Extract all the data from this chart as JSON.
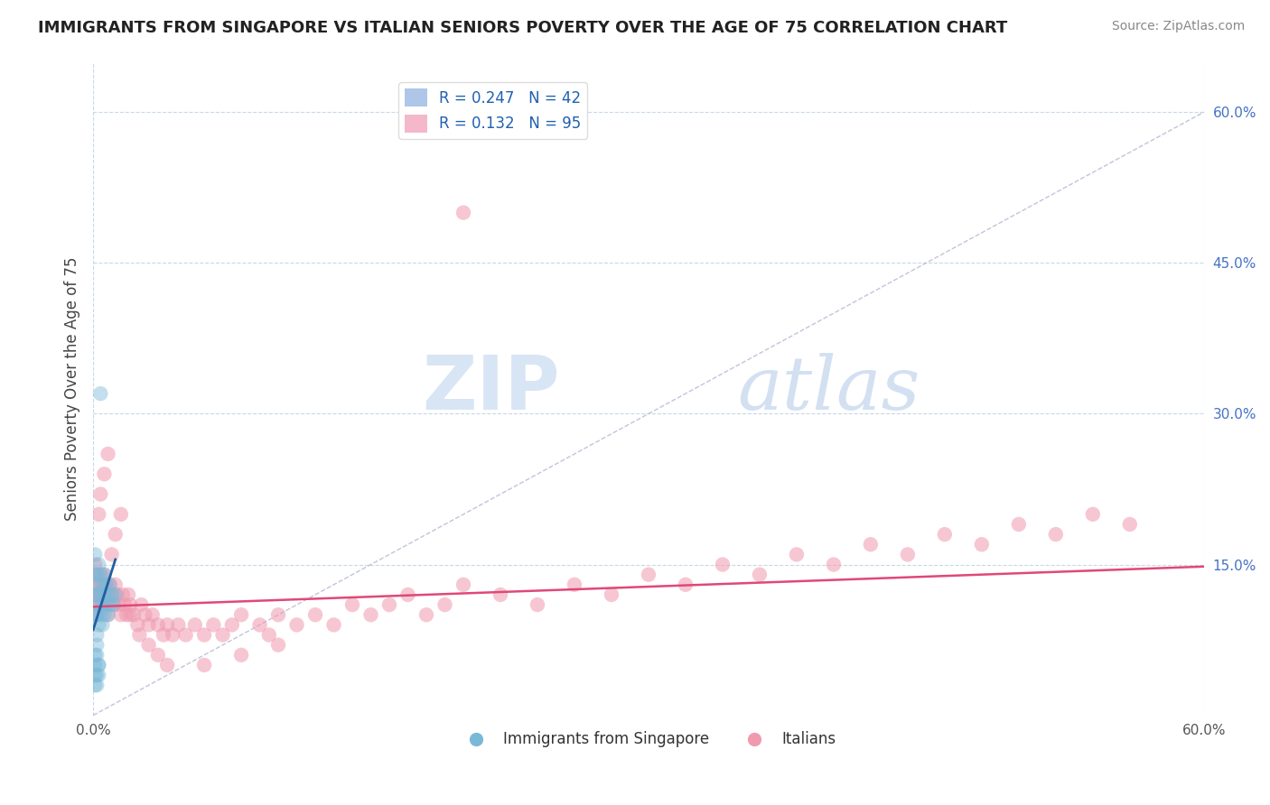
{
  "title": "IMMIGRANTS FROM SINGAPORE VS ITALIAN SENIORS POVERTY OVER THE AGE OF 75 CORRELATION CHART",
  "source": "Source: ZipAtlas.com",
  "ylabel": "Seniors Poverty Over the Age of 75",
  "xlim": [
    0.0,
    0.6
  ],
  "ylim": [
    0.0,
    0.65
  ],
  "xticks": [
    0.0,
    0.1,
    0.2,
    0.3,
    0.4,
    0.5,
    0.6
  ],
  "xticklabels": [
    "0.0%",
    "",
    "",
    "",
    "",
    "",
    "60.0%"
  ],
  "yticks_right": [
    0.15,
    0.3,
    0.45,
    0.6
  ],
  "ytick_right_labels": [
    "15.0%",
    "30.0%",
    "45.0%",
    "60.0%"
  ],
  "legend_entries": [
    {
      "label": "R = 0.247   N = 42",
      "color": "#aec6e8"
    },
    {
      "label": "R = 0.132   N = 95",
      "color": "#f4b8ca"
    }
  ],
  "legend_label1": "Immigrants from Singapore",
  "legend_label2": "Italians",
  "watermark_zip": "ZIP",
  "watermark_atlas": "atlas",
  "background_color": "#ffffff",
  "plot_bg_color": "#ffffff",
  "grid_color": "#c8d8e8",
  "scatter_singapore": {
    "color": "#7ab8d8",
    "alpha": 0.45,
    "size": 140,
    "x": [
      0.001,
      0.001,
      0.001,
      0.001,
      0.002,
      0.002,
      0.002,
      0.002,
      0.003,
      0.003,
      0.003,
      0.003,
      0.004,
      0.004,
      0.004,
      0.005,
      0.005,
      0.005,
      0.006,
      0.006,
      0.006,
      0.007,
      0.007,
      0.008,
      0.008,
      0.009,
      0.009,
      0.01,
      0.011,
      0.012,
      0.004,
      0.003,
      0.002,
      0.001,
      0.001,
      0.002,
      0.003,
      0.003,
      0.002,
      0.001,
      0.001,
      0.002
    ],
    "y": [
      0.1,
      0.12,
      0.14,
      0.16,
      0.08,
      0.1,
      0.12,
      0.14,
      0.09,
      0.11,
      0.13,
      0.15,
      0.1,
      0.12,
      0.14,
      0.09,
      0.11,
      0.13,
      0.1,
      0.12,
      0.14,
      0.11,
      0.13,
      0.1,
      0.12,
      0.11,
      0.13,
      0.12,
      0.11,
      0.12,
      0.32,
      0.05,
      0.04,
      0.03,
      0.05,
      0.06,
      0.04,
      0.05,
      0.03,
      0.04,
      0.06,
      0.07
    ]
  },
  "scatter_italian": {
    "color": "#f09ab0",
    "alpha": 0.55,
    "size": 140,
    "x": [
      0.001,
      0.001,
      0.001,
      0.002,
      0.002,
      0.002,
      0.003,
      0.003,
      0.003,
      0.004,
      0.004,
      0.005,
      0.005,
      0.006,
      0.006,
      0.007,
      0.007,
      0.008,
      0.008,
      0.009,
      0.01,
      0.011,
      0.012,
      0.013,
      0.014,
      0.015,
      0.016,
      0.017,
      0.018,
      0.019,
      0.02,
      0.022,
      0.024,
      0.026,
      0.028,
      0.03,
      0.032,
      0.035,
      0.038,
      0.04,
      0.043,
      0.046,
      0.05,
      0.055,
      0.06,
      0.065,
      0.07,
      0.075,
      0.08,
      0.09,
      0.095,
      0.1,
      0.11,
      0.12,
      0.13,
      0.14,
      0.15,
      0.16,
      0.17,
      0.18,
      0.19,
      0.2,
      0.22,
      0.24,
      0.26,
      0.28,
      0.3,
      0.32,
      0.34,
      0.36,
      0.38,
      0.4,
      0.42,
      0.44,
      0.46,
      0.48,
      0.5,
      0.52,
      0.54,
      0.56,
      0.004,
      0.006,
      0.008,
      0.01,
      0.012,
      0.015,
      0.02,
      0.025,
      0.03,
      0.035,
      0.04,
      0.06,
      0.08,
      0.1,
      0.2
    ],
    "y": [
      0.11,
      0.13,
      0.15,
      0.1,
      0.12,
      0.14,
      0.11,
      0.13,
      0.2,
      0.12,
      0.14,
      0.11,
      0.13,
      0.12,
      0.14,
      0.11,
      0.13,
      0.12,
      0.1,
      0.13,
      0.12,
      0.11,
      0.13,
      0.12,
      0.11,
      0.1,
      0.12,
      0.11,
      0.1,
      0.12,
      0.11,
      0.1,
      0.09,
      0.11,
      0.1,
      0.09,
      0.1,
      0.09,
      0.08,
      0.09,
      0.08,
      0.09,
      0.08,
      0.09,
      0.08,
      0.09,
      0.08,
      0.09,
      0.1,
      0.09,
      0.08,
      0.1,
      0.09,
      0.1,
      0.09,
      0.11,
      0.1,
      0.11,
      0.12,
      0.1,
      0.11,
      0.13,
      0.12,
      0.11,
      0.13,
      0.12,
      0.14,
      0.13,
      0.15,
      0.14,
      0.16,
      0.15,
      0.17,
      0.16,
      0.18,
      0.17,
      0.19,
      0.18,
      0.2,
      0.19,
      0.22,
      0.24,
      0.26,
      0.16,
      0.18,
      0.2,
      0.1,
      0.08,
      0.07,
      0.06,
      0.05,
      0.05,
      0.06,
      0.07,
      0.5
    ]
  },
  "diagonal_line": {
    "color": "#aaaacc",
    "x_start": 0.0,
    "x_end": 0.6,
    "y_start": 0.0,
    "y_end": 0.6,
    "linewidth": 1.0,
    "linestyle": "--"
  },
  "trendline_singapore": {
    "color": "#2060a0",
    "x_start": 0.0,
    "x_end": 0.012,
    "y_start": 0.085,
    "y_end": 0.155,
    "linewidth": 2.0,
    "linestyle": "-"
  },
  "trendline_italian": {
    "color": "#e04878",
    "x_start": 0.0,
    "x_end": 0.6,
    "y_start": 0.108,
    "y_end": 0.148,
    "linewidth": 1.8,
    "linestyle": "-"
  }
}
